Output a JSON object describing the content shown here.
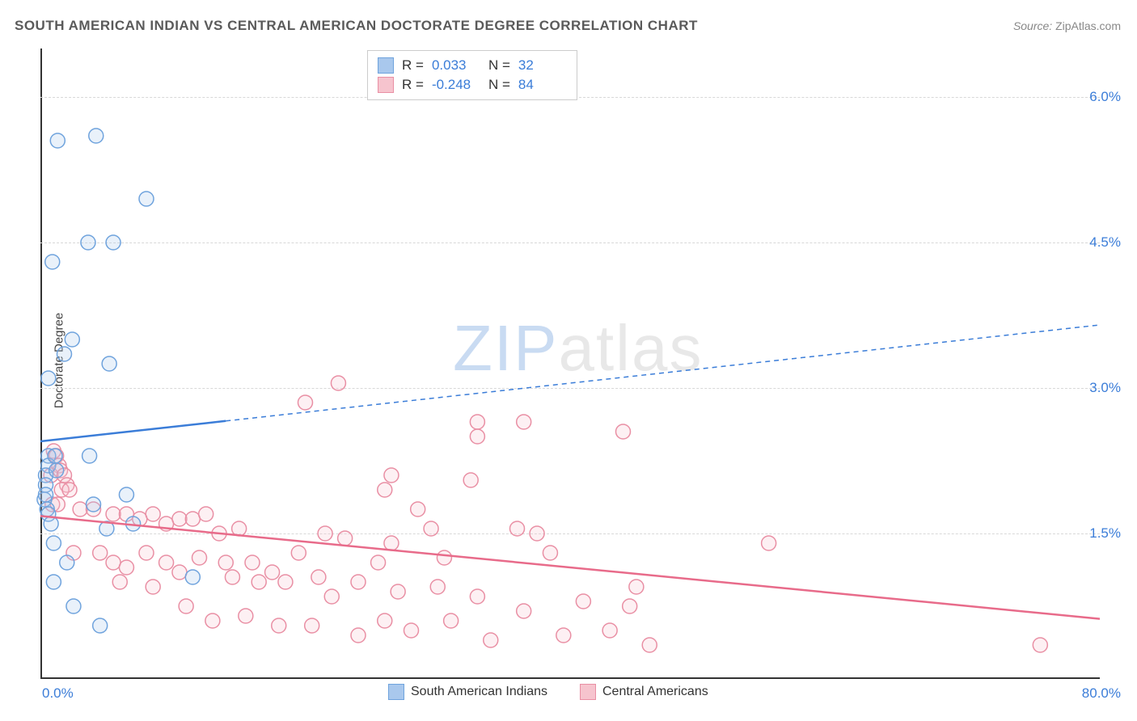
{
  "title": "SOUTH AMERICAN INDIAN VS CENTRAL AMERICAN DOCTORATE DEGREE CORRELATION CHART",
  "source_label": "Source:",
  "source_value": "ZipAtlas.com",
  "ylabel": "Doctorate Degree",
  "watermark_zip": "ZIP",
  "watermark_atlas": "atlas",
  "chart": {
    "type": "scatter",
    "xlim": [
      0,
      80
    ],
    "ylim": [
      0,
      6.5
    ],
    "x_ticks": [
      "0.0%",
      "80.0%"
    ],
    "y_ticks": [
      {
        "value": 1.5,
        "label": "1.5%"
      },
      {
        "value": 3.0,
        "label": "3.0%"
      },
      {
        "value": 4.5,
        "label": "4.5%"
      },
      {
        "value": 6.0,
        "label": "6.0%"
      }
    ],
    "background_color": "#ffffff",
    "grid_color": "#d8d8d8",
    "axis_color": "#333333",
    "tick_label_color": "#3b7dd8",
    "marker_radius": 9,
    "marker_stroke_width": 1.5,
    "marker_fill_opacity": 0.25,
    "series": [
      {
        "id": "blue",
        "legend_label": "South American Indians",
        "fill": "#a9c8ed",
        "stroke": "#6fa3dd",
        "R": "0.033",
        "N": "32",
        "trend": {
          "x1": 0,
          "y1": 2.45,
          "x2": 80,
          "y2": 3.65,
          "solid_to_x": 14,
          "color": "#3b7dd8",
          "width": 2.5
        },
        "points": [
          [
            1.3,
            5.55
          ],
          [
            4.2,
            5.6
          ],
          [
            0.9,
            4.3
          ],
          [
            8.0,
            4.95
          ],
          [
            3.6,
            4.5
          ],
          [
            5.5,
            4.5
          ],
          [
            0.6,
            3.1
          ],
          [
            1.8,
            3.35
          ],
          [
            2.4,
            3.5
          ],
          [
            5.2,
            3.25
          ],
          [
            0.6,
            2.3
          ],
          [
            0.6,
            2.2
          ],
          [
            0.4,
            2.1
          ],
          [
            0.4,
            2.0
          ],
          [
            1.1,
            2.3
          ],
          [
            1.2,
            2.15
          ],
          [
            3.7,
            2.3
          ],
          [
            0.3,
            1.85
          ],
          [
            0.4,
            1.9
          ],
          [
            0.5,
            1.75
          ],
          [
            0.6,
            1.7
          ],
          [
            0.8,
            1.6
          ],
          [
            4.0,
            1.8
          ],
          [
            6.5,
            1.9
          ],
          [
            1.0,
            1.4
          ],
          [
            2.0,
            1.2
          ],
          [
            7.0,
            1.6
          ],
          [
            1.0,
            1.0
          ],
          [
            2.5,
            0.75
          ],
          [
            11.5,
            1.05
          ],
          [
            4.5,
            0.55
          ],
          [
            5.0,
            1.55
          ]
        ]
      },
      {
        "id": "pink",
        "legend_label": "Central Americans",
        "fill": "#f6c4ce",
        "stroke": "#e98fa4",
        "R": "-0.248",
        "N": "84",
        "trend": {
          "x1": 0,
          "y1": 1.68,
          "x2": 80,
          "y2": 0.62,
          "solid_to_x": 80,
          "color": "#e86b8a",
          "width": 2.5
        },
        "points": [
          [
            22.5,
            3.05
          ],
          [
            20.0,
            2.85
          ],
          [
            33.0,
            2.65
          ],
          [
            36.5,
            2.65
          ],
          [
            33.0,
            2.5
          ],
          [
            44.0,
            2.55
          ],
          [
            26.5,
            2.1
          ],
          [
            1.0,
            2.35
          ],
          [
            1.2,
            2.3
          ],
          [
            1.4,
            2.2
          ],
          [
            0.8,
            2.1
          ],
          [
            1.5,
            2.15
          ],
          [
            1.8,
            2.1
          ],
          [
            2.0,
            2.0
          ],
          [
            1.6,
            1.95
          ],
          [
            2.2,
            1.95
          ],
          [
            0.9,
            1.8
          ],
          [
            1.3,
            1.8
          ],
          [
            26.0,
            1.95
          ],
          [
            32.5,
            2.05
          ],
          [
            28.5,
            1.75
          ],
          [
            29.5,
            1.55
          ],
          [
            26.5,
            1.4
          ],
          [
            3.0,
            1.75
          ],
          [
            4.0,
            1.75
          ],
          [
            5.5,
            1.7
          ],
          [
            6.5,
            1.7
          ],
          [
            7.5,
            1.65
          ],
          [
            8.5,
            1.7
          ],
          [
            9.5,
            1.6
          ],
          [
            10.5,
            1.65
          ],
          [
            11.5,
            1.65
          ],
          [
            12.5,
            1.7
          ],
          [
            13.5,
            1.5
          ],
          [
            15.0,
            1.55
          ],
          [
            21.5,
            1.5
          ],
          [
            36.0,
            1.55
          ],
          [
            37.5,
            1.5
          ],
          [
            38.5,
            1.3
          ],
          [
            55.0,
            1.4
          ],
          [
            2.5,
            1.3
          ],
          [
            4.5,
            1.3
          ],
          [
            5.5,
            1.2
          ],
          [
            6.5,
            1.15
          ],
          [
            8.0,
            1.3
          ],
          [
            9.5,
            1.2
          ],
          [
            6.0,
            1.0
          ],
          [
            8.5,
            0.95
          ],
          [
            10.5,
            1.1
          ],
          [
            12.0,
            1.25
          ],
          [
            14.0,
            1.2
          ],
          [
            14.5,
            1.05
          ],
          [
            16.0,
            1.2
          ],
          [
            16.5,
            1.0
          ],
          [
            17.5,
            1.1
          ],
          [
            18.5,
            1.0
          ],
          [
            19.5,
            1.3
          ],
          [
            21.0,
            1.05
          ],
          [
            22.0,
            0.85
          ],
          [
            24.0,
            1.0
          ],
          [
            25.5,
            1.2
          ],
          [
            27.0,
            0.9
          ],
          [
            30.0,
            0.95
          ],
          [
            31.0,
            0.6
          ],
          [
            33.0,
            0.85
          ],
          [
            36.5,
            0.7
          ],
          [
            41.0,
            0.8
          ],
          [
            44.5,
            0.75
          ],
          [
            11.0,
            0.75
          ],
          [
            13.0,
            0.6
          ],
          [
            15.5,
            0.65
          ],
          [
            18.0,
            0.55
          ],
          [
            20.5,
            0.55
          ],
          [
            24.0,
            0.45
          ],
          [
            26.0,
            0.6
          ],
          [
            28.0,
            0.5
          ],
          [
            34.0,
            0.4
          ],
          [
            39.5,
            0.45
          ],
          [
            43.0,
            0.5
          ],
          [
            46.0,
            0.35
          ],
          [
            45.0,
            0.95
          ],
          [
            75.5,
            0.35
          ],
          [
            30.5,
            1.25
          ],
          [
            23.0,
            1.45
          ]
        ]
      }
    ]
  },
  "stats_box": {
    "R_label": "R =",
    "N_label": "N ="
  }
}
